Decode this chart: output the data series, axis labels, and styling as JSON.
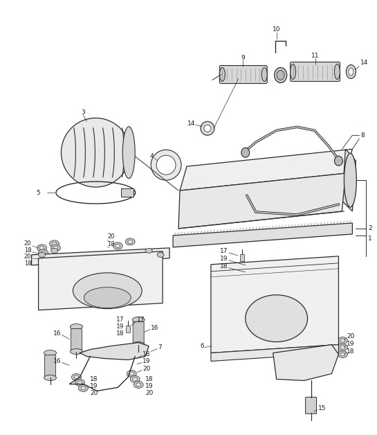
{
  "background_color": "#ffffff",
  "line_color": "#2a2a2a",
  "text_color": "#1a1a1a",
  "fig_width": 5.45,
  "fig_height": 6.28,
  "dpi": 100
}
